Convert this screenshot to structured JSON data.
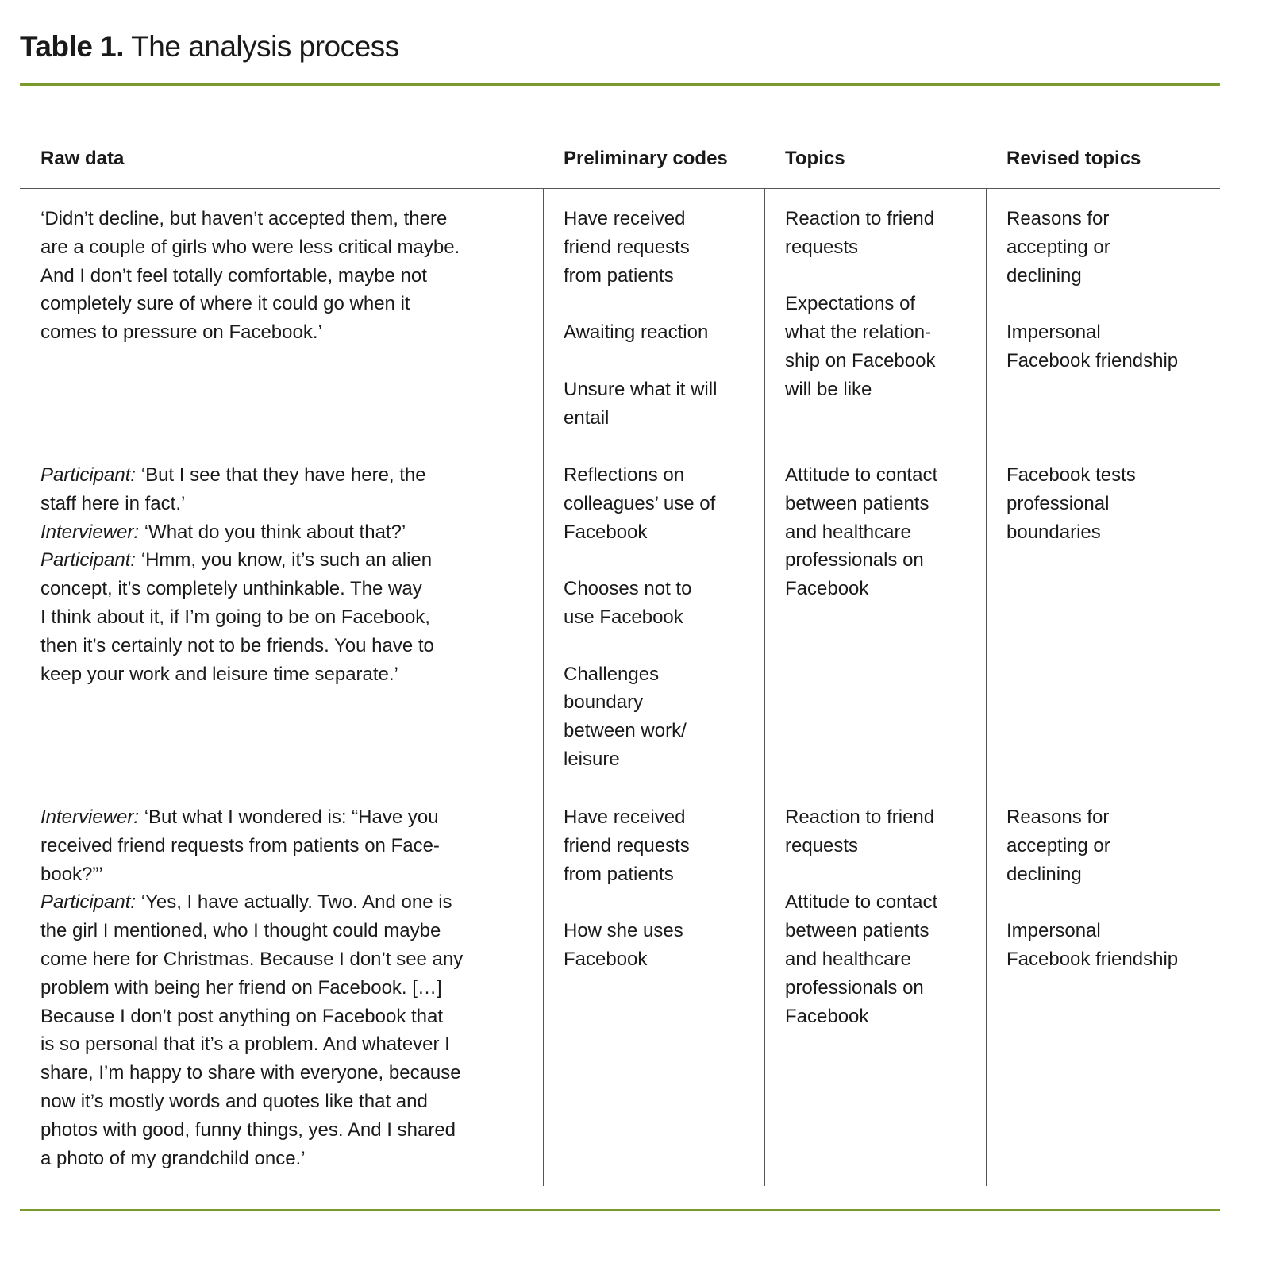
{
  "title": {
    "label": "Table 1.",
    "text": "The analysis process"
  },
  "colors": {
    "rule": "#7a9a2e",
    "grid": "#555555"
  },
  "columns": [
    "Raw data",
    "Preliminary codes",
    "Topics",
    "Revised topics"
  ],
  "rows": [
    {
      "raw": [
        {
          "speaker": "",
          "lines": [
            "‘Didn’t decline, but haven’t accepted them, there",
            "are a couple of girls who were less critical maybe.",
            "And I don’t feel totally comfortable, maybe not",
            "completely sure of where it could go when it",
            "comes to pressure on Facebook.’"
          ]
        }
      ],
      "codes": [
        [
          "Have received",
          "friend requests",
          "from patients"
        ],
        [
          "Awaiting reaction"
        ],
        [
          "Unsure what it will",
          "entail"
        ]
      ],
      "topics": [
        [
          "Reaction to friend",
          "requests"
        ],
        [
          "Expectations of",
          "what the relation-",
          "ship on Facebook",
          "will be like"
        ]
      ],
      "revised": [
        [
          "Reasons for",
          "accepting or",
          "declining"
        ],
        [
          "Impersonal",
          "Facebook friendship"
        ]
      ]
    },
    {
      "raw": [
        {
          "speaker": "Participant:",
          "lines": [
            " ‘But I see that they have here, the",
            "staff here in fact.’"
          ]
        },
        {
          "speaker": "Interviewer:",
          "lines": [
            " ‘What do you think about that?’"
          ]
        },
        {
          "speaker": "Participant:",
          "lines": [
            " ‘Hmm, you know, it’s such an alien",
            "concept, it’s completely unthinkable. The way",
            "I think about it, if I’m going to be on Facebook,",
            "then it’s certainly not to be friends. You have to",
            "keep your work and leisure time separate.’"
          ]
        }
      ],
      "codes": [
        [
          "Reflections on",
          "colleagues’ use of",
          "Facebook"
        ],
        [
          "Chooses not to",
          "use Facebook"
        ],
        [
          "Challenges",
          "boundary",
          "between work/",
          "leisure"
        ]
      ],
      "topics": [
        [
          "Attitude to contact",
          "between patients",
          "and healthcare",
          "professionals on",
          "Facebook"
        ]
      ],
      "revised": [
        [
          "Facebook tests",
          "professional",
          "boundaries"
        ]
      ]
    },
    {
      "raw": [
        {
          "speaker": "Interviewer:",
          "lines": [
            " ‘But what I wondered is: “Have you",
            "received friend requests from patients on Face-",
            "book?”’"
          ]
        },
        {
          "speaker": "Participant:",
          "lines": [
            " ‘Yes, I have actually. Two. And one is",
            "the girl I mentioned, who I thought could maybe",
            "come here for Christmas. Because I don’t see any",
            "problem with being her friend on Facebook. […]",
            "Because I don’t post anything on Facebook that",
            "is so personal that it’s a problem. And whatever I",
            "share, I’m happy to share with everyone, because",
            "now it’s mostly words and quotes like that and",
            "photos with good, funny things, yes. And I shared",
            "a photo of my grandchild once.’"
          ]
        }
      ],
      "codes": [
        [
          "Have received",
          "friend requests",
          "from patients"
        ],
        [
          "How she uses",
          "Facebook"
        ]
      ],
      "topics": [
        [
          "Reaction to friend",
          "requests"
        ],
        [
          "Attitude to contact",
          "between patients",
          "and healthcare",
          "professionals on",
          "Facebook"
        ]
      ],
      "revised": [
        [
          "Reasons for",
          "accepting or",
          "declining"
        ],
        [
          "Impersonal",
          "Facebook friendship"
        ]
      ]
    }
  ]
}
